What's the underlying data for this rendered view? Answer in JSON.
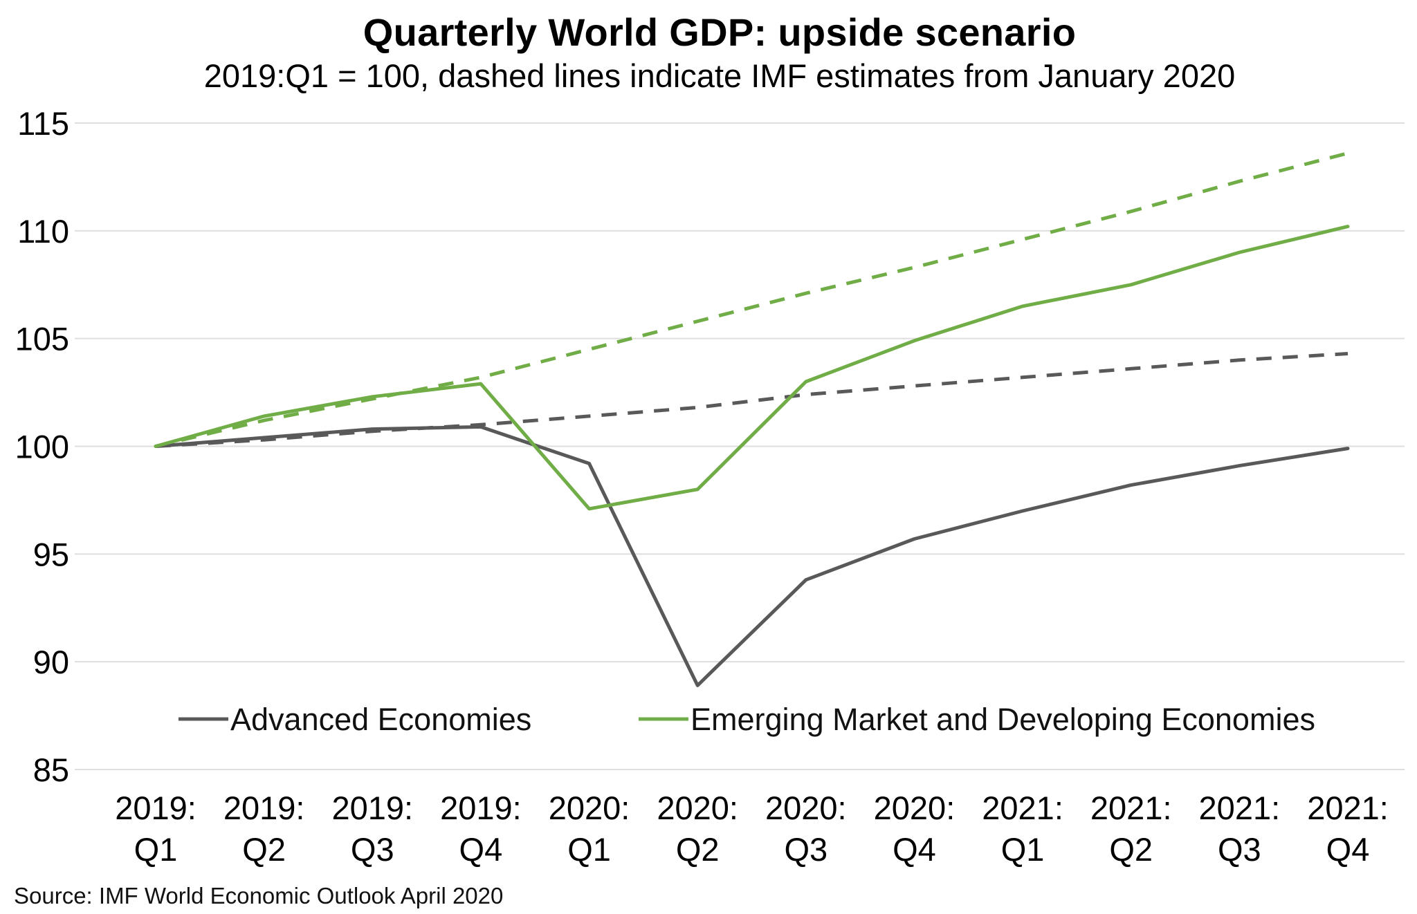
{
  "chart_data": {
    "type": "line",
    "title": "Quarterly World GDP: upside scenario",
    "subtitle": "2019:Q1 = 100, dashed lines indicate IMF estimates from January 2020",
    "source": "Source: IMF World Economic  Outlook April 2020",
    "ylim": [
      85,
      115
    ],
    "yticks": [
      "85",
      "90",
      "95",
      "100",
      "105",
      "110",
      "115"
    ],
    "grid": true,
    "categories": [
      [
        "2019:",
        "Q1"
      ],
      [
        "2019:",
        "Q2"
      ],
      [
        "2019:",
        "Q3"
      ],
      [
        "2019:",
        "Q4"
      ],
      [
        "2020:",
        "Q1"
      ],
      [
        "2020:",
        "Q2"
      ],
      [
        "2020:",
        "Q3"
      ],
      [
        "2020:",
        "Q4"
      ],
      [
        "2021:",
        "Q1"
      ],
      [
        "2021:",
        "Q2"
      ],
      [
        "2021:",
        "Q3"
      ],
      [
        "2021:",
        "Q4"
      ]
    ],
    "series": [
      {
        "name": "Advanced Economies",
        "color": "#595959",
        "dashed": false,
        "in_legend": true,
        "values": [
          100,
          100.4,
          100.8,
          100.9,
          99.2,
          88.9,
          93.8,
          95.7,
          97.0,
          98.2,
          99.1,
          99.9
        ]
      },
      {
        "name": "Emerging Market and Developing Economies",
        "color": "#70ad47",
        "dashed": false,
        "in_legend": true,
        "values": [
          100,
          101.4,
          102.3,
          102.9,
          97.1,
          98.0,
          103.0,
          104.9,
          106.5,
          107.5,
          109.0,
          110.2
        ]
      },
      {
        "name": "Advanced Economies (January 2020 estimate)",
        "color": "#595959",
        "dashed": true,
        "in_legend": false,
        "values": [
          100,
          100.3,
          100.7,
          101.0,
          101.4,
          101.8,
          102.4,
          102.8,
          103.2,
          103.6,
          104.0,
          104.3
        ]
      },
      {
        "name": "Emerging Market and Developing Economies (January 2020 estimate)",
        "color": "#70ad47",
        "dashed": true,
        "in_legend": false,
        "values": [
          100,
          101.2,
          102.2,
          103.2,
          104.5,
          105.8,
          107.1,
          108.3,
          109.6,
          110.9,
          112.3,
          113.6
        ]
      }
    ],
    "legend": {
      "placement": "bottom-inside",
      "entries": [
        "Advanced Economies",
        "Emerging Market and Developing Economies"
      ]
    }
  }
}
